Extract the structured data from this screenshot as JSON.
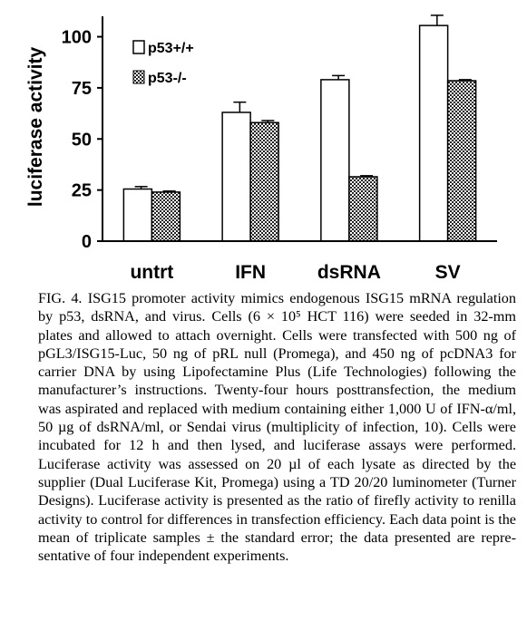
{
  "chart_data": {
    "type": "bar",
    "categories": [
      "untrt",
      "IFN",
      "dsRNA",
      "SV"
    ],
    "series": [
      {
        "name": "p53+/+",
        "values": [
          25.5,
          63,
          79,
          105.5
        ],
        "errors": [
          1.2,
          5,
          2,
          5
        ],
        "fill": "#ffffff"
      },
      {
        "name": "p53-/-",
        "values": [
          24,
          58,
          31.5,
          78.5
        ],
        "errors": [
          0.5,
          1,
          0.5,
          0.5
        ],
        "fill": "#555555"
      }
    ],
    "ylabel": "luciferase activity",
    "xlabel": "",
    "ylim": [
      0,
      110
    ],
    "yticks": [
      0,
      25,
      50,
      75,
      100
    ],
    "grid": false,
    "legend": "top-left"
  },
  "caption": {
    "label": "FIG. 4.",
    "text": "ISG15 promoter activity mimics endogenous ISG15 mRNA regulation by p53, dsRNA, and virus. Cells (6 × 10⁵ HCT 116) were seeded in 32-mm plates and allowed to attach overnight. Cells were transfected with 500 ng of pGL3/ISG15-Luc, 50 ng of pRL null (Pro­mega), and 450 ng of pcDNA3 for carrier DNA by using Lipo­fectamine Plus (Life Technologies) following the manufacturer’s instructions. Twenty-four hours posttransfection, the medium was as­pirated and replaced with medium containing either 1,000 U of IFN-α/ml, 50 µg of dsRNA/ml, or Sendai virus (multiplicity of infection, 10). Cells were incubated for 12 h and then lysed, and luciferase assays were performed. Luciferase activity was assessed on 20 µl of each lysate as directed by the supplier (Dual Luciferase Kit, Promega) using a TD 20/20 luminometer (Turner Designs). Luciferase activity is pre­sented as the ratio of firefly activity to renilla activity to control for differences in transfection efficiency. Each data point is the mean of triplicate samples ± the standard error; the data presented are repre­sentative of four independent experiments."
  }
}
